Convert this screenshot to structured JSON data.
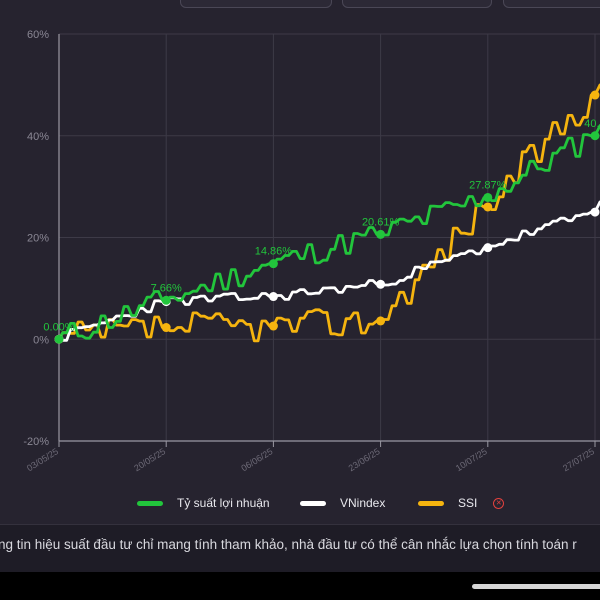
{
  "chart_data": {
    "type": "line",
    "x": [
      "03/05/25",
      "20/05/25",
      "06/06/25",
      "23/06/25",
      "10/07/25",
      "27/07/25"
    ],
    "x_tick_labels": [
      "03/05/25",
      "20/05/25",
      "06/06/25",
      "23/06/25",
      "10/07/25",
      "27/07/25"
    ],
    "y_tick_labels": [
      "60%",
      "40%",
      "20%",
      "0%",
      "-20%"
    ],
    "ylim": [
      -20,
      60
    ],
    "y_unit": "%",
    "grid": true,
    "legend_position": "bottom",
    "series": [
      {
        "name": "Tỷ suất lợi nhuận",
        "color": "#22c53c",
        "values": [
          0.0,
          7.66,
          14.86,
          20.61,
          27.87,
          40.0
        ],
        "point_labels": [
          "0.00%",
          "7.66%",
          "14.86%",
          "20.61%",
          "27.87%",
          "40.0"
        ]
      },
      {
        "name": "VNindex",
        "color": "#ffffff",
        "values": [
          0.0,
          7.4,
          8.4,
          10.8,
          18.0,
          25.0
        ]
      },
      {
        "name": "SSI",
        "color": "#f5b40f",
        "values": [
          0.0,
          2.3,
          2.6,
          3.6,
          26.0,
          48.0
        ]
      }
    ]
  },
  "legend": {
    "items": [
      "Tỷ suất lợi nhuận",
      "VNindex",
      "SSI"
    ],
    "info_icon": "info-circle-icon"
  },
  "disclaimer": "ng tin hiệu suất đầu tư chỉ mang tính tham khảo, nhà đầu tư có thể cân nhắc lựa chọn tính toán r",
  "colors": {
    "background": "#26232f",
    "grid": "#3d3a47",
    "axis_text": "#8a8794",
    "strategy": "#22c53c",
    "vnindex": "#ffffff",
    "ssi": "#f5b40f"
  }
}
